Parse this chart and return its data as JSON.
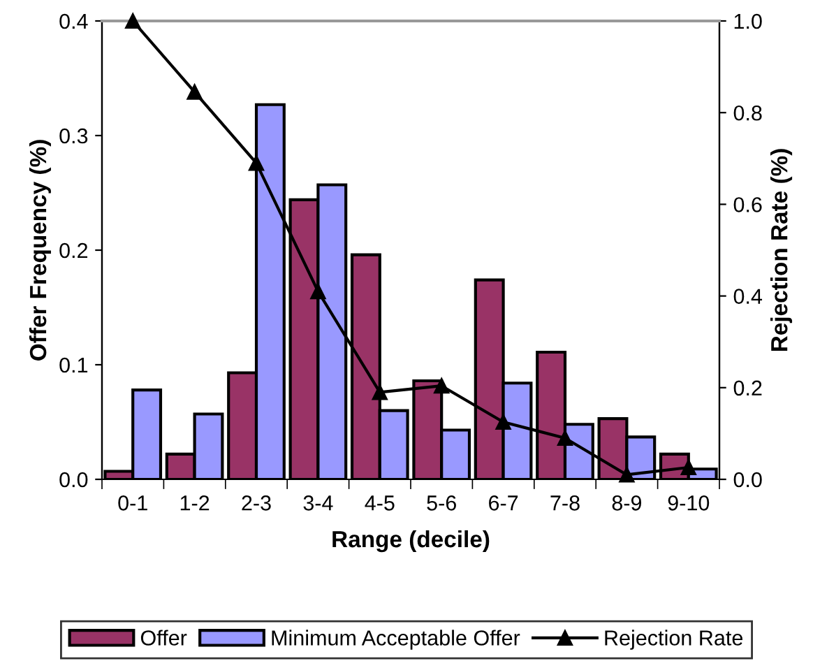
{
  "chart_data": {
    "type": "bar",
    "xlabel": "Range (decile)",
    "ylabel": "Offer Frequency (%)",
    "y2label": "Rejection Rate (%)",
    "categories": [
      "0-1",
      "1-2",
      "2-3",
      "3-4",
      "4-5",
      "5-6",
      "6-7",
      "7-8",
      "8-9",
      "9-10"
    ],
    "series": [
      {
        "name": "Offer",
        "color": "#993366",
        "values": [
          0.007,
          0.022,
          0.093,
          0.244,
          0.196,
          0.086,
          0.174,
          0.111,
          0.053,
          0.022
        ]
      },
      {
        "name": "Minimum Acceptable Offer",
        "color": "#9999ff",
        "values": [
          0.078,
          0.057,
          0.327,
          0.257,
          0.06,
          0.043,
          0.084,
          0.048,
          0.037,
          0.009
        ]
      },
      {
        "name": "Rejection Rate",
        "type": "line",
        "axis": "y2",
        "color": "#000000",
        "marker": "triangle",
        "values": [
          1.0,
          0.845,
          0.69,
          0.41,
          0.19,
          0.204,
          0.125,
          0.09,
          0.01,
          0.026
        ]
      }
    ],
    "ylim": [
      0,
      0.4
    ],
    "yticks": [
      "0.0",
      0.1,
      0.2,
      0.3,
      0.4
    ],
    "y2lim": [
      0,
      1
    ],
    "y2ticks": [
      "0.0",
      0.2,
      0.4,
      0.6,
      0.8,
      "1.0"
    ],
    "legend": "bottom",
    "grid": false
  }
}
